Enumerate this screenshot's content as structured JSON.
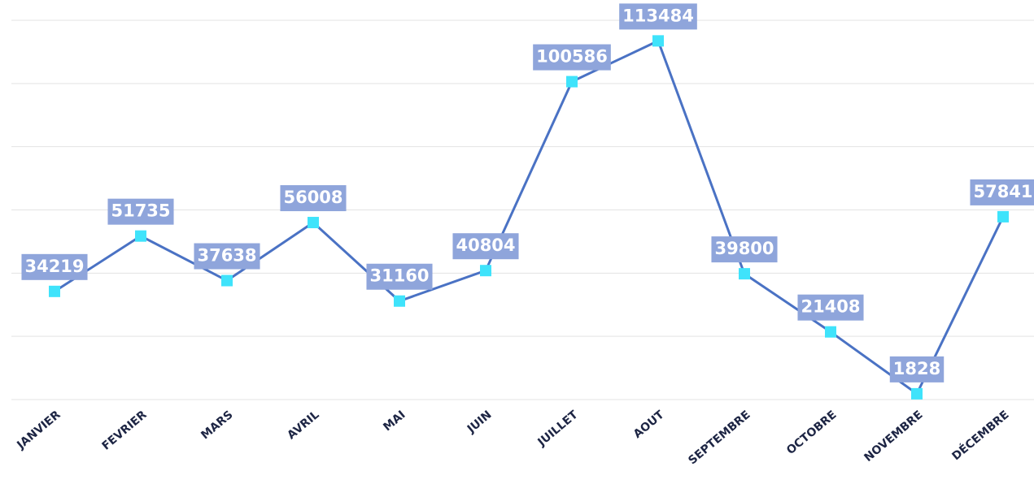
{
  "chart_data": {
    "type": "line",
    "categories": [
      "JANVIER",
      "FEVRIER",
      "MARS",
      "AVRIL",
      "MAI",
      "JUIN",
      "JUILLET",
      "AOUT",
      "SEPTEMBRE",
      "OCTOBRE",
      "NOVEMBRE",
      "DÉCEMBRE"
    ],
    "values": [
      34219,
      51735,
      37638,
      56008,
      31160,
      40804,
      100586,
      113484,
      39800,
      21408,
      1828,
      57841
    ],
    "color": "#4a72c4",
    "marker_color": "#3fe3fb",
    "label_color": "#8fa5db",
    "ylim": [
      0,
      120000
    ],
    "yticks": [
      0,
      20000,
      40000,
      60000,
      80000,
      100000,
      120000
    ],
    "grid": true
  }
}
